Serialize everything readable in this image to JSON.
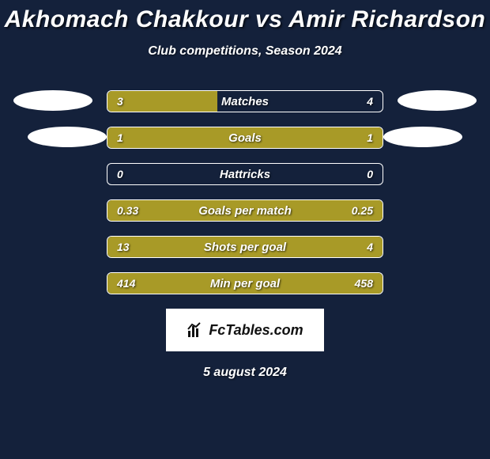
{
  "background_color": "#14213b",
  "bar_color": "#a89a27",
  "border_color": "#ffffff",
  "text_color": "#ffffff",
  "title": {
    "player1": "Akhomach Chakkour",
    "vs": "vs",
    "player2": "Amir Richardson",
    "fontsize": 30
  },
  "subtitle": "Club competitions, Season 2024",
  "stats": [
    {
      "label": "Matches",
      "left_val": "3",
      "right_val": "4",
      "left_pct": 40,
      "right_pct": 0
    },
    {
      "label": "Goals",
      "left_val": "1",
      "right_val": "1",
      "left_pct": 100,
      "right_pct": 0
    },
    {
      "label": "Hattricks",
      "left_val": "0",
      "right_val": "0",
      "left_pct": 0,
      "right_pct": 0
    },
    {
      "label": "Goals per match",
      "left_val": "0.33",
      "right_val": "0.25",
      "left_pct": 100,
      "right_pct": 0
    },
    {
      "label": "Shots per goal",
      "left_val": "13",
      "right_val": "4",
      "left_pct": 73,
      "right_pct": 27
    },
    {
      "label": "Min per goal",
      "left_val": "414",
      "right_val": "458",
      "left_pct": 0,
      "right_pct": 100
    }
  ],
  "logo_text": "FcTables.com",
  "date": "5 august 2024"
}
